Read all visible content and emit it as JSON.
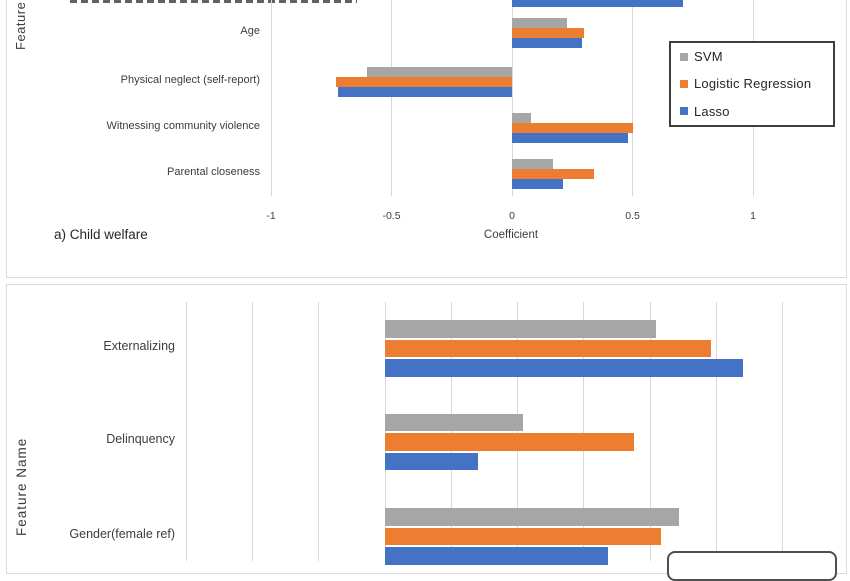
{
  "colors": {
    "svm": "#A6A6A6",
    "logistic_regression": "#ED7D31",
    "lasso": "#4472C4",
    "gridline": "#D9D9D9",
    "panel_border": "#DCDCDC",
    "legend_border": "#3F3F3F",
    "text": "#3C3C3C"
  },
  "legend": {
    "items": [
      {
        "label": "SVM",
        "color": "#A6A6A6"
      },
      {
        "label": "Logistic Regression",
        "color": "#ED7D31"
      },
      {
        "label": "Lasso",
        "color": "#4472C4"
      }
    ]
  },
  "chart_data": [
    {
      "type": "bar",
      "orientation": "horizontal",
      "caption": "a) Child welfare",
      "xlabel": "Coefficient",
      "ylabel": "Feature Name",
      "xlim": [
        -1,
        1.4
      ],
      "x_ticks": [
        {
          "value": -1,
          "label": "-1"
        },
        {
          "value": -0.5,
          "label": "-0.5"
        },
        {
          "value": 0,
          "label": "0"
        },
        {
          "value": 0.5,
          "label": "0.5"
        },
        {
          "value": 1,
          "label": "1"
        }
      ],
      "gridline_values": [
        -1,
        -0.5,
        0,
        0.5,
        1
      ],
      "categories": [
        "",
        "Age",
        "Physical neglect (self-report)",
        "Witnessing community violence",
        "Parental closeness"
      ],
      "series": [
        {
          "name": "SVM",
          "color": "#A6A6A6",
          "values": [
            null,
            0.23,
            -0.6,
            0.08,
            0.17
          ]
        },
        {
          "name": "Logistic Regression",
          "color": "#ED7D31",
          "values": [
            null,
            0.3,
            -0.73,
            0.5,
            0.34
          ]
        },
        {
          "name": "Lasso",
          "color": "#4472C4",
          "values": [
            0.71,
            0.29,
            -0.72,
            0.48,
            0.21
          ]
        }
      ],
      "legend_position": "right",
      "grid": true
    },
    {
      "type": "bar",
      "orientation": "horizontal",
      "ylabel": "Feature Name",
      "xlim": [
        -0.75,
        1.75
      ],
      "x_ticks": [],
      "gridline_values": [
        -0.75,
        -0.5,
        -0.25,
        0,
        0.25,
        0.5,
        0.75,
        1,
        1.25,
        1.5
      ],
      "categories": [
        "Externalizing",
        "Delinquency",
        "Gender(female ref)"
      ],
      "series": [
        {
          "name": "SVM",
          "color": "#A6A6A6",
          "values": [
            1.02,
            0.52,
            1.11
          ]
        },
        {
          "name": "Logistic Regression",
          "color": "#ED7D31",
          "values": [
            1.23,
            0.94,
            1.04
          ]
        },
        {
          "name": "Lasso",
          "color": "#4472C4",
          "values": [
            1.35,
            0.35,
            0.84
          ]
        }
      ],
      "legend_position": "bottom-clipped",
      "grid": true
    }
  ]
}
